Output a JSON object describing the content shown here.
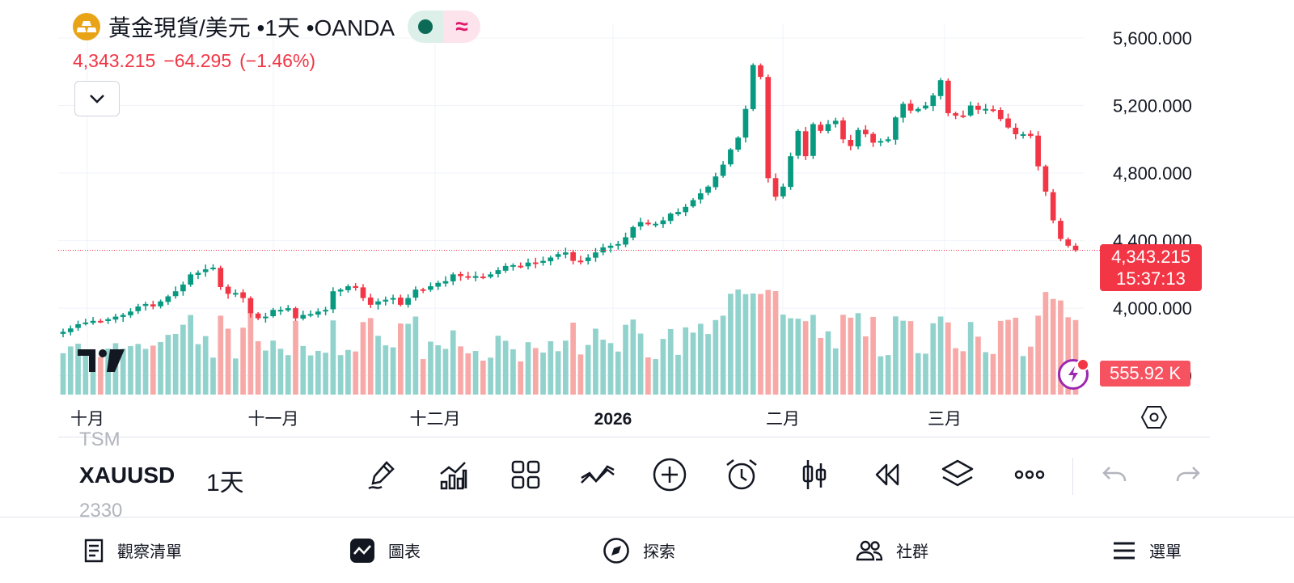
{
  "header": {
    "title": "黃金現貨/美元 •1天 •OANDA",
    "price": "4,343.215",
    "change": "−64.295",
    "change_pct": "(−1.46%)"
  },
  "price_tag": {
    "price": "4,343.215",
    "countdown": "15:37:13"
  },
  "volume_tag": "555.92 K",
  "toolbar": {
    "ticker_above": "TSM",
    "ticker": "XAUUSD",
    "ticker_below": "2330",
    "interval": "1天",
    "tools": [
      "pencil-icon",
      "indicators-icon",
      "layout-grid-icon",
      "compare-icon",
      "add-icon",
      "alarm-icon",
      "candle-style-icon",
      "replay-icon",
      "layers-icon",
      "more-icon",
      "undo-icon",
      "redo-icon"
    ]
  },
  "bottom_nav": [
    {
      "label": "觀察清單",
      "icon": "watchlist-icon"
    },
    {
      "label": "圖表",
      "icon": "chart-icon"
    },
    {
      "label": "探索",
      "icon": "compass-icon"
    },
    {
      "label": "社群",
      "icon": "community-icon"
    },
    {
      "label": "選單",
      "icon": "menu-icon"
    }
  ],
  "colors": {
    "up": "#089981",
    "down": "#f23645",
    "up_vol": "#92d2cc",
    "down_vol": "#f7a9a7",
    "accent": "#f23645"
  },
  "chart_data": {
    "type": "candlestick",
    "title": "黃金現貨/美元 •1天 •OANDA",
    "ylim": [
      3560,
      5600
    ],
    "y_ticks": [
      "5,600.000",
      "5,200.000",
      "4,800.000",
      "4,400.000",
      "4,000.000",
      "3,600.000"
    ],
    "x_labels": [
      "十月",
      "十一月",
      "十二月",
      "2026",
      "二月",
      "三月"
    ],
    "last_price": 4343.215,
    "closes": [
      3860,
      3880,
      3905,
      3915,
      3925,
      3920,
      3935,
      3950,
      3960,
      3980,
      4010,
      4025,
      4010,
      4040,
      4070,
      4100,
      4140,
      4200,
      4210,
      4230,
      4240,
      4125,
      4085,
      4090,
      4060,
      3970,
      3940,
      3950,
      3990,
      3990,
      4000,
      3940,
      3960,
      3965,
      3980,
      3990,
      4100,
      4110,
      4130,
      4120,
      4060,
      4020,
      4040,
      4050,
      4060,
      4020,
      4060,
      4110,
      4105,
      4130,
      4150,
      4160,
      4200,
      4190,
      4180,
      4190,
      4185,
      4200,
      4225,
      4250,
      4255,
      4250,
      4270,
      4265,
      4280,
      4300,
      4320,
      4330,
      4280,
      4280,
      4300,
      4330,
      4360,
      4370,
      4380,
      4420,
      4480,
      4510,
      4500,
      4500,
      4520,
      4560,
      4570,
      4600,
      4640,
      4680,
      4720,
      4780,
      4850,
      4940,
      5010,
      5180,
      5440,
      5370,
      4770,
      4660,
      4720,
      4900,
      5050,
      4900,
      5090,
      5050,
      5090,
      5110,
      5000,
      4960,
      5055,
      5030,
      4980,
      4990,
      5000,
      5130,
      5210,
      5170,
      5180,
      5200,
      5260,
      5350,
      5155,
      5140,
      5140,
      5200,
      5175,
      5180,
      5175,
      5120,
      5070,
      5030,
      5030,
      5020,
      4840,
      4690,
      4520,
      4410,
      4370,
      4343.215
    ]
  }
}
